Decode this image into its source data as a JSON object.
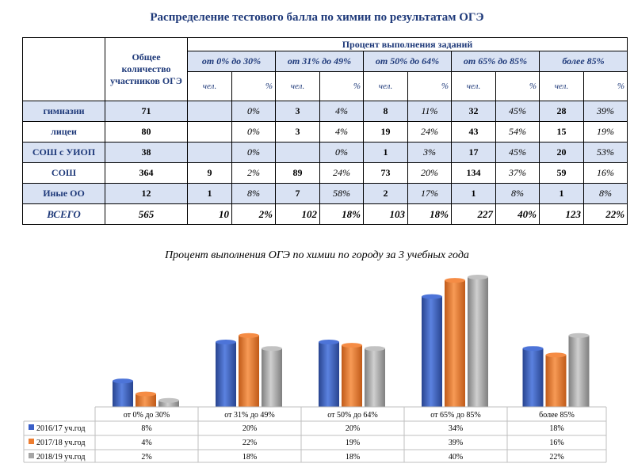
{
  "title": "Распределение тестового балла по химии по результатам ОГЭ",
  "table": {
    "participants_header": "Общее количество участников ОГЭ",
    "percent_header": "Процент выполнения заданий",
    "ranges": [
      "от 0% до 30%",
      "от 31% до 49%",
      "от 50% до 64%",
      "от 65% до 85%",
      "более 85%"
    ],
    "sub_people": "чел.",
    "sub_percent": "%",
    "rows": [
      {
        "name": "гимназии",
        "total": "71",
        "cells": [
          [
            "",
            "0%"
          ],
          [
            "3",
            "4%"
          ],
          [
            "8",
            "11%"
          ],
          [
            "32",
            "45%"
          ],
          [
            "28",
            "39%"
          ]
        ]
      },
      {
        "name": "лицеи",
        "total": "80",
        "cells": [
          [
            "",
            "0%"
          ],
          [
            "3",
            "4%"
          ],
          [
            "19",
            "24%"
          ],
          [
            "43",
            "54%"
          ],
          [
            "15",
            "19%"
          ]
        ]
      },
      {
        "name": "СОШ с УИОП",
        "total": "38",
        "cells": [
          [
            "",
            "0%"
          ],
          [
            "",
            "0%"
          ],
          [
            "1",
            "3%"
          ],
          [
            "17",
            "45%"
          ],
          [
            "20",
            "53%"
          ]
        ]
      },
      {
        "name": "СОШ",
        "total": "364",
        "cells": [
          [
            "9",
            "2%"
          ],
          [
            "89",
            "24%"
          ],
          [
            "73",
            "20%"
          ],
          [
            "134",
            "37%"
          ],
          [
            "59",
            "16%"
          ]
        ]
      },
      {
        "name": "Иные ОО",
        "total": "12",
        "cells": [
          [
            "1",
            "8%"
          ],
          [
            "7",
            "58%"
          ],
          [
            "2",
            "17%"
          ],
          [
            "1",
            "8%"
          ],
          [
            "1",
            "8%"
          ]
        ]
      },
      {
        "name": "ВСЕГО",
        "total": "565",
        "cells": [
          [
            "10",
            "2%"
          ],
          [
            "102",
            "18%"
          ],
          [
            "103",
            "18%"
          ],
          [
            "227",
            "40%"
          ],
          [
            "123",
            "22%"
          ]
        ]
      }
    ]
  },
  "chart_data": {
    "type": "bar",
    "title": "Процент выполнения ОГЭ по химии по городу за 3 учебных года",
    "categories": [
      "от 0% до 30%",
      "от 31% до 49%",
      "от 50% до 64%",
      "от 65% до 85%",
      "более 85%"
    ],
    "series": [
      {
        "name": "2016/17 уч.год",
        "values": [
          8,
          20,
          20,
          34,
          18
        ],
        "labels": [
          "8%",
          "20%",
          "20%",
          "34%",
          "18%"
        ],
        "color": "#3a5fc8"
      },
      {
        "name": "2017/18 уч.год",
        "values": [
          4,
          22,
          19,
          39,
          16
        ],
        "labels": [
          "4%",
          "22%",
          "19%",
          "39%",
          "16%"
        ],
        "color": "#ed7d31"
      },
      {
        "name": "2018/19 уч.год",
        "values": [
          2,
          18,
          18,
          40,
          22
        ],
        "labels": [
          "2%",
          "18%",
          "18%",
          "40%",
          "22%"
        ],
        "color": "#a5a5a5"
      }
    ],
    "ylim": [
      0,
      40
    ],
    "legend": "data-table-left"
  }
}
